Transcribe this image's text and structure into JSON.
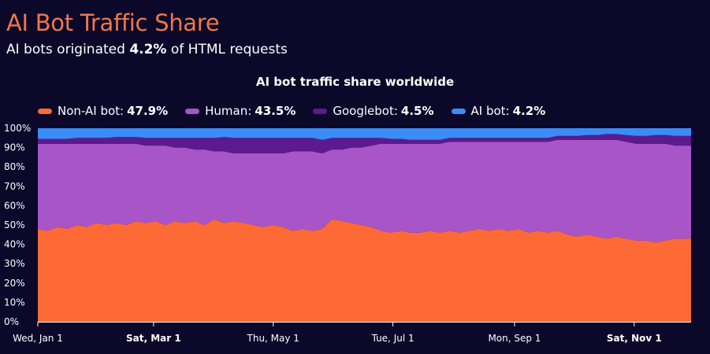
{
  "header": {
    "title": "AI Bot Traffic Share",
    "subtitle_prefix": "AI bots originated ",
    "subtitle_value": "4.2%",
    "subtitle_suffix": " of HTML requests"
  },
  "colors": {
    "background": "#0b0829",
    "title": "#f0774c",
    "axis": "#ffffff"
  },
  "chart_data": {
    "type": "area",
    "stacked": true,
    "title": "AI bot traffic share worldwide",
    "xlabel": "",
    "ylabel": "",
    "ylim": [
      0,
      100
    ],
    "y_ticks": [
      "0%",
      "10%",
      "20%",
      "30%",
      "40%",
      "50%",
      "60%",
      "70%",
      "80%",
      "90%",
      "100%"
    ],
    "x_range": [
      "Jan 1",
      "Nov 30"
    ],
    "x_ticks": [
      {
        "label": "Wed, Jan 1",
        "day": 0,
        "bold": false
      },
      {
        "label": "Sat, Mar 1",
        "day": 59,
        "bold": true
      },
      {
        "label": "Thu, May 1",
        "day": 120,
        "bold": false
      },
      {
        "label": "Tue, Jul 1",
        "day": 181,
        "bold": false
      },
      {
        "label": "Mon, Sep 1",
        "day": 243,
        "bold": false
      },
      {
        "label": "Sat, Nov 1",
        "day": 304,
        "bold": true
      }
    ],
    "x_days": [
      0,
      5,
      10,
      15,
      20,
      25,
      30,
      35,
      40,
      45,
      50,
      55,
      60,
      65,
      70,
      75,
      80,
      85,
      90,
      95,
      100,
      105,
      110,
      115,
      120,
      125,
      130,
      135,
      140,
      145,
      150,
      155,
      160,
      165,
      170,
      175,
      180,
      185,
      190,
      195,
      200,
      205,
      210,
      215,
      220,
      225,
      230,
      235,
      240,
      245,
      250,
      255,
      260,
      265,
      270,
      275,
      280,
      285,
      290,
      295,
      300,
      305,
      310,
      315,
      320,
      325,
      333
    ],
    "legend_position": "top-left",
    "series": [
      {
        "name": "Non-AI bot",
        "legend_value": "47.9%",
        "color": "#fe6a35",
        "values": [
          48,
          47,
          49,
          48,
          50,
          49,
          51,
          50,
          51,
          50,
          52,
          51,
          52,
          50,
          52,
          51,
          52,
          50,
          53,
          51,
          52,
          51,
          50,
          49,
          50,
          49,
          47,
          48,
          47,
          48,
          53,
          52,
          51,
          50,
          49,
          47,
          46,
          47,
          46,
          46,
          47,
          46,
          47,
          46,
          47,
          48,
          47,
          48,
          47,
          48,
          46,
          47,
          46,
          47,
          45,
          44,
          45,
          44,
          43,
          44,
          43,
          42,
          42,
          41,
          42,
          43,
          43
        ]
      },
      {
        "name": "Human",
        "legend_value": "43.5%",
        "color": "#a855c7",
        "values": [
          44,
          45,
          43,
          44,
          42,
          43,
          41,
          42,
          41,
          42,
          40,
          40,
          39,
          41,
          38,
          39,
          37,
          39,
          35,
          37,
          35,
          36,
          37,
          38,
          37,
          38,
          41,
          40,
          41,
          39,
          36,
          37,
          39,
          40,
          42,
          45,
          46,
          45,
          46,
          46,
          45,
          46,
          46,
          47,
          46,
          45,
          46,
          45,
          46,
          45,
          47,
          46,
          47,
          47,
          49,
          50,
          49,
          50,
          51,
          50,
          50,
          50,
          50,
          51,
          50,
          48,
          48
        ]
      },
      {
        "name": "Googlebot",
        "legend_value": "4.5%",
        "color": "#5c1a8f",
        "values": [
          2.5,
          2.5,
          2.5,
          2.5,
          3,
          3,
          3,
          3,
          3.5,
          3.5,
          3.5,
          4,
          4,
          4,
          5,
          5,
          6,
          6,
          7,
          7.5,
          8,
          8,
          8,
          8,
          8,
          8,
          7,
          7,
          7,
          7,
          6,
          6,
          5,
          5,
          4,
          3,
          2.5,
          2.5,
          2,
          2,
          2,
          2,
          2,
          2,
          2,
          2,
          2,
          2,
          2,
          2,
          2,
          2,
          2,
          2,
          2,
          2,
          2.5,
          2.5,
          3,
          3,
          3.5,
          4,
          4,
          4.5,
          4.5,
          5,
          5
        ]
      },
      {
        "name": "AI bot",
        "legend_value": "4.2%",
        "color": "#3b8cf6",
        "values": [
          5.5,
          5.5,
          5.5,
          5.5,
          5,
          5,
          5,
          5,
          4.5,
          4.5,
          4.5,
          5,
          5,
          5,
          5,
          5,
          5,
          5,
          5,
          4.5,
          5,
          5,
          5,
          5,
          5,
          5,
          5,
          5,
          5,
          6,
          5,
          5,
          5,
          5,
          5,
          5,
          5.5,
          5.5,
          6,
          6,
          6,
          6,
          5,
          5,
          5,
          5,
          5,
          5,
          5,
          5,
          5,
          5,
          5,
          4,
          4,
          4,
          3.5,
          3.5,
          3,
          3,
          3.5,
          4,
          4,
          3.5,
          3.5,
          4,
          4
        ]
      }
    ]
  }
}
